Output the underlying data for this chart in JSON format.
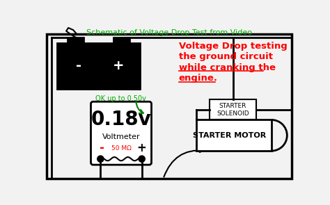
{
  "title": "Schematic of Voltage Drop Test from Video",
  "title_color": "#00aa00",
  "bg_color": "#f2f2f2",
  "annotation_line1": "Voltage Drop testing",
  "annotation_line2": "the ground circuit",
  "annotation_line3": "while cranking the",
  "annotation_line4": "engine.",
  "annotation_color": "red",
  "ok_text": "OK up to 0.50v",
  "ok_color": "#00aa00",
  "reading": "0.18v",
  "voltmeter_label": "Voltmeter",
  "resistance_label": "50 MΩ",
  "starter_solenoid": "STARTER\nSOLENOID",
  "starter_motor": "STARTER MOTOR"
}
